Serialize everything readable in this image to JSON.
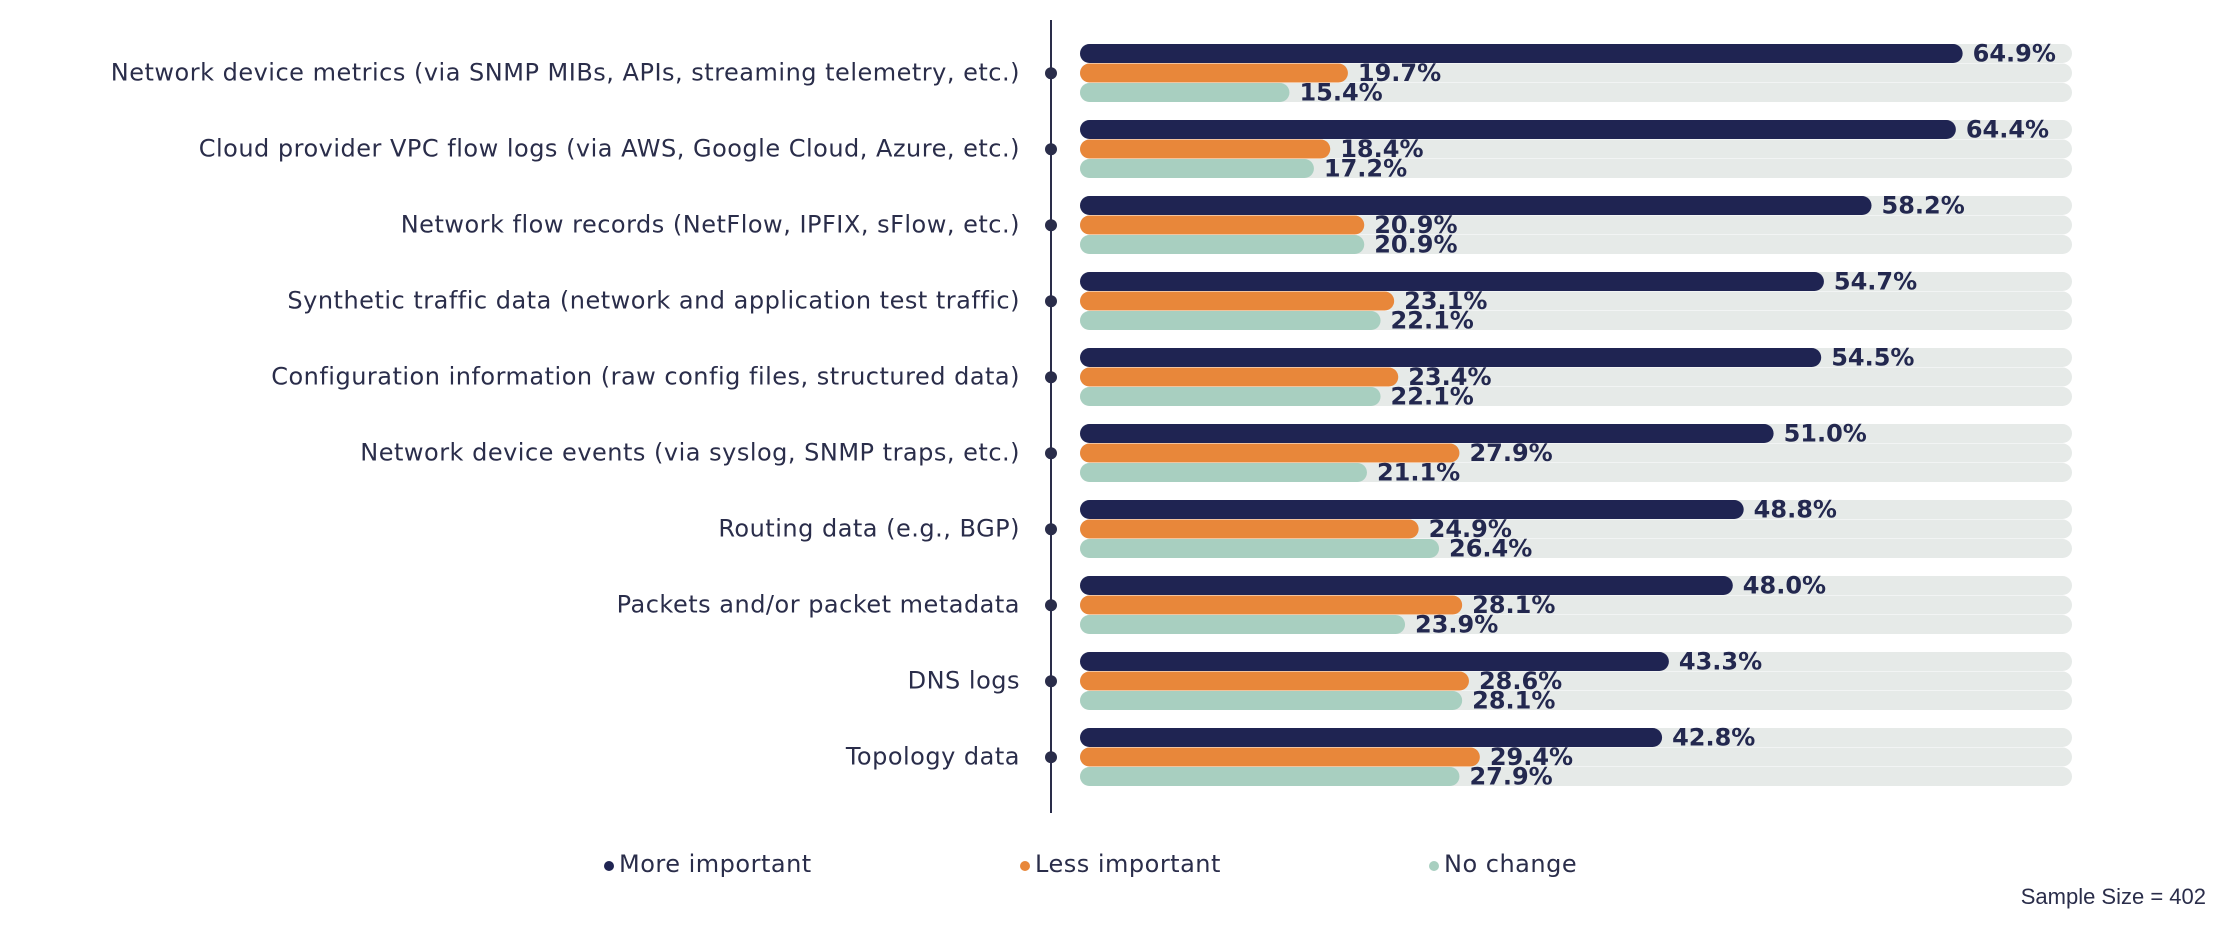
{
  "chart_data": {
    "type": "bar",
    "orientation": "horizontal",
    "categories": [
      "Network device metrics (via SNMP MIBs, APIs, streaming telemetry, etc.)",
      "Cloud provider VPC flow logs (via AWS, Google Cloud, Azure, etc.)",
      "Network flow records (NetFlow, IPFIX, sFlow, etc.)",
      "Synthetic traffic data (network and application test traffic)",
      "Configuration information (raw config files, structured data)",
      "Network device events (via syslog, SNMP traps, etc.)",
      "Routing data (e.g., BGP)",
      "Packets and/or packet metadata",
      "DNS logs",
      "Topology data"
    ],
    "series": [
      {
        "name": "More important",
        "color": "#1f2452",
        "values": [
          64.9,
          64.4,
          58.2,
          54.7,
          54.5,
          51.0,
          48.8,
          48.0,
          43.3,
          42.8
        ],
        "value_labels": [
          "64.9%",
          "64.4%",
          "58.2%",
          "54.7%",
          "54.5%",
          "51.0%",
          "48.8%",
          "48.0%",
          "43.3%",
          "42.8%"
        ]
      },
      {
        "name": "Less important",
        "color": "#e8873a",
        "values": [
          19.7,
          18.4,
          20.9,
          23.1,
          23.4,
          27.9,
          24.9,
          28.1,
          28.6,
          29.4
        ],
        "value_labels": [
          "19.7%",
          "18.4%",
          "20.9%",
          "23.1%",
          "23.4%",
          "27.9%",
          "24.9%",
          "28.1%",
          "28.6%",
          "29.4%"
        ]
      },
      {
        "name": "No change",
        "color": "#a8cfc0",
        "values": [
          15.4,
          17.2,
          20.9,
          22.1,
          22.1,
          21.1,
          26.4,
          23.9,
          28.1,
          27.9
        ],
        "value_labels": [
          "15.4%",
          "17.2%",
          "20.9%",
          "22.1%",
          "22.1%",
          "21.1%",
          "26.4%",
          "23.9%",
          "28.1%",
          "27.9%"
        ]
      }
    ],
    "legend": "bottom",
    "note": "Sample Size = 402"
  }
}
